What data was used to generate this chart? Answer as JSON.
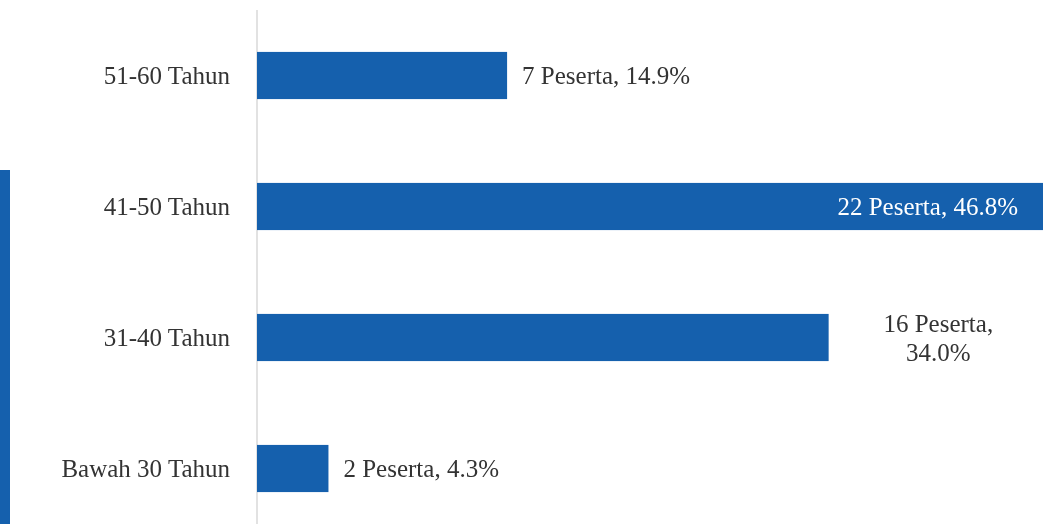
{
  "chart_data": {
    "type": "bar",
    "orientation": "horizontal",
    "categories": [
      "51-60 Tahun",
      "41-50 Tahun",
      "31-40 Tahun",
      "Bawah 30 Tahun"
    ],
    "values": [
      7,
      22,
      16,
      2
    ],
    "value_labels": [
      "7 Peserta, 14.9%",
      "22 Peserta, 46.8%",
      "16 Peserta, 34.0%",
      "2 Peserta, 4.3%"
    ],
    "color": "#1560ad"
  }
}
